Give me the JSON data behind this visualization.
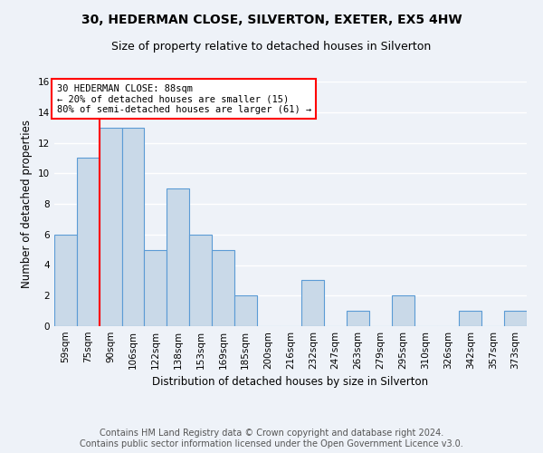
{
  "title": "30, HEDERMAN CLOSE, SILVERTON, EXETER, EX5 4HW",
  "subtitle": "Size of property relative to detached houses in Silverton",
  "xlabel": "Distribution of detached houses by size in Silverton",
  "ylabel": "Number of detached properties",
  "categories": [
    "59sqm",
    "75sqm",
    "90sqm",
    "106sqm",
    "122sqm",
    "138sqm",
    "153sqm",
    "169sqm",
    "185sqm",
    "200sqm",
    "216sqm",
    "232sqm",
    "247sqm",
    "263sqm",
    "279sqm",
    "295sqm",
    "310sqm",
    "326sqm",
    "342sqm",
    "357sqm",
    "373sqm"
  ],
  "values": [
    6,
    11,
    13,
    13,
    5,
    9,
    6,
    5,
    2,
    0,
    0,
    3,
    0,
    1,
    0,
    2,
    0,
    0,
    1,
    0,
    1
  ],
  "bar_color": "#c9d9e8",
  "bar_edge_color": "#5b9bd5",
  "annotation_text_line1": "30 HEDERMAN CLOSE: 88sqm",
  "annotation_text_line2": "← 20% of detached houses are smaller (15)",
  "annotation_text_line3": "80% of semi-detached houses are larger (61) →",
  "annotation_box_color": "white",
  "annotation_box_edge_color": "red",
  "vline_color": "red",
  "ylim": [
    0,
    16
  ],
  "yticks": [
    0,
    2,
    4,
    6,
    8,
    10,
    12,
    14,
    16
  ],
  "footer_line1": "Contains HM Land Registry data © Crown copyright and database right 2024.",
  "footer_line2": "Contains public sector information licensed under the Open Government Licence v3.0.",
  "background_color": "#eef2f8",
  "grid_color": "white",
  "title_fontsize": 10,
  "subtitle_fontsize": 9,
  "axis_label_fontsize": 8.5,
  "tick_fontsize": 7.5,
  "annotation_fontsize": 7.5,
  "footer_fontsize": 7
}
